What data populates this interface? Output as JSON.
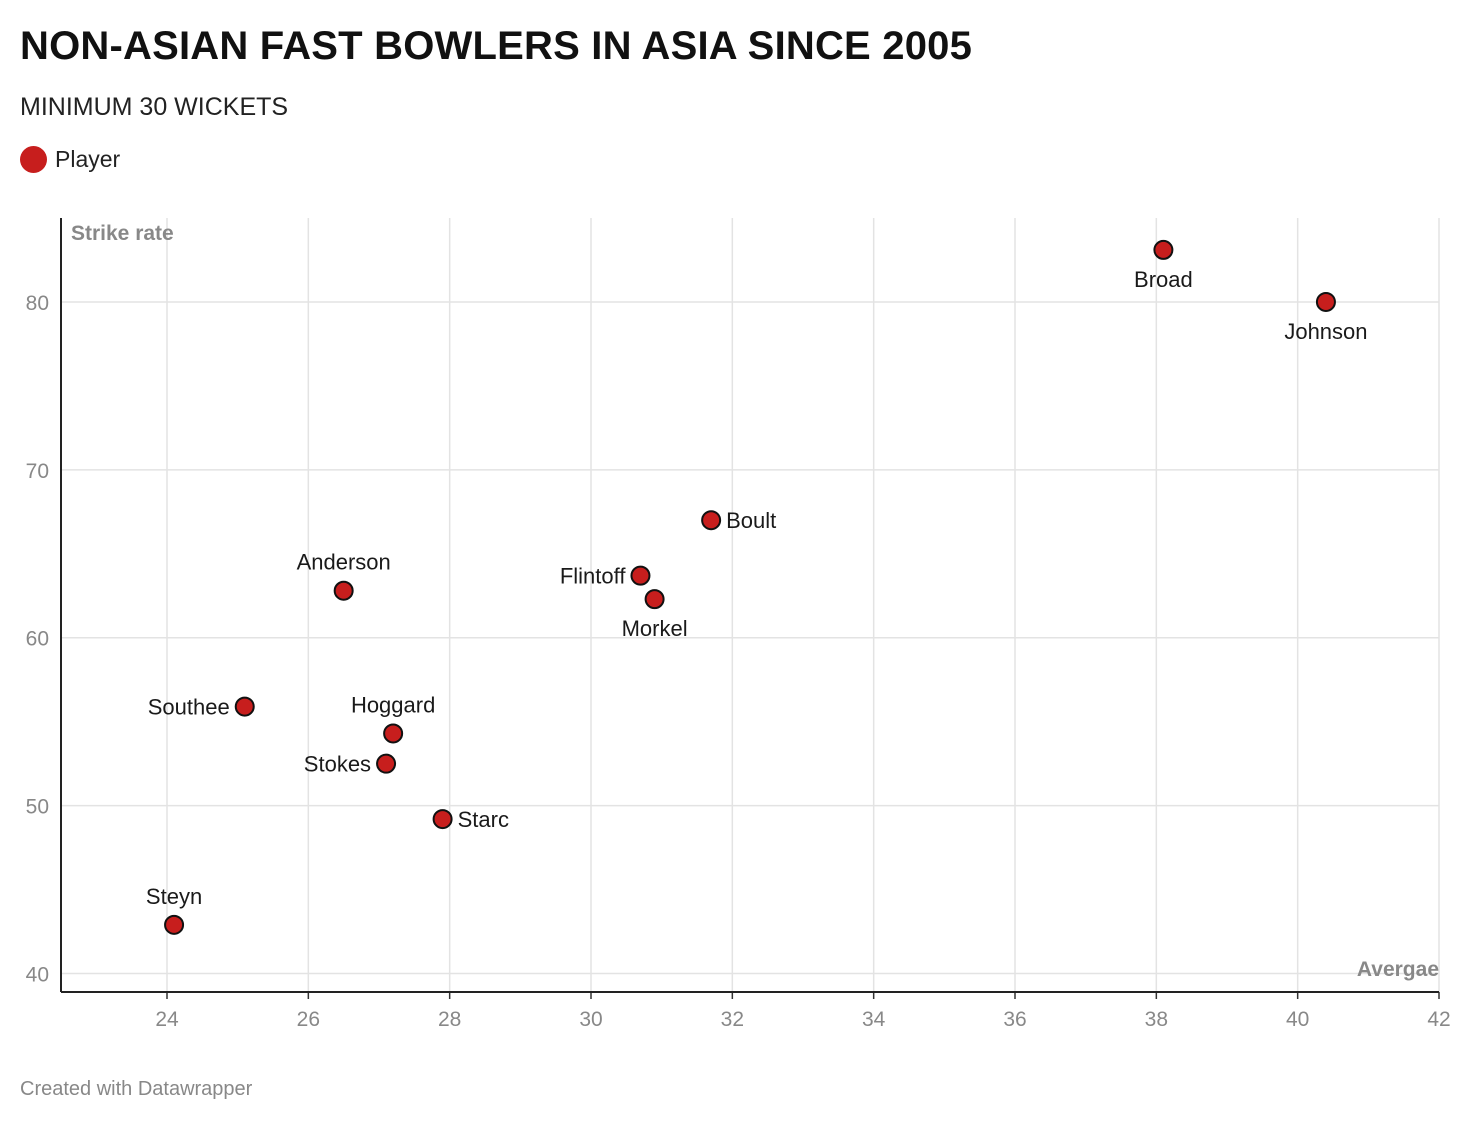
{
  "chart_data": {
    "type": "scatter",
    "title": "NON-ASIAN FAST BOWLERS IN ASIA SINCE 2005",
    "subtitle": "MINIMUM 30 WICKETS",
    "legend": [
      {
        "name": "Player",
        "color": "#c71e1d"
      }
    ],
    "legend_position": "top-left",
    "xlabel": "Avergae",
    "ylabel": "Strike rate",
    "xlim": [
      22.5,
      42
    ],
    "ylim": [
      38.9,
      85
    ],
    "xticks": [
      24,
      26,
      28,
      30,
      32,
      34,
      36,
      38,
      40,
      42
    ],
    "yticks": [
      40,
      50,
      60,
      70,
      80
    ],
    "grid": true,
    "series": [
      {
        "name": "Player",
        "color": "#c71e1d",
        "points": [
          {
            "label": "Broad",
            "x": 38.1,
            "y": 83.1,
            "label_pos": "below"
          },
          {
            "label": "Johnson",
            "x": 40.4,
            "y": 80.0,
            "label_pos": "below"
          },
          {
            "label": "Boult",
            "x": 31.7,
            "y": 67.0,
            "label_pos": "right"
          },
          {
            "label": "Flintoff",
            "x": 30.7,
            "y": 63.7,
            "label_pos": "left"
          },
          {
            "label": "Morkel",
            "x": 30.9,
            "y": 62.3,
            "label_pos": "below"
          },
          {
            "label": "Anderson",
            "x": 26.5,
            "y": 62.8,
            "label_pos": "above"
          },
          {
            "label": "Southee",
            "x": 25.1,
            "y": 55.9,
            "label_pos": "left"
          },
          {
            "label": "Hoggard",
            "x": 27.2,
            "y": 54.3,
            "label_pos": "above"
          },
          {
            "label": "Stokes",
            "x": 27.1,
            "y": 52.5,
            "label_pos": "left"
          },
          {
            "label": "Starc",
            "x": 27.9,
            "y": 49.2,
            "label_pos": "right"
          },
          {
            "label": "Steyn",
            "x": 24.1,
            "y": 42.9,
            "label_pos": "above"
          }
        ]
      }
    ]
  },
  "footer": "Created with Datawrapper"
}
